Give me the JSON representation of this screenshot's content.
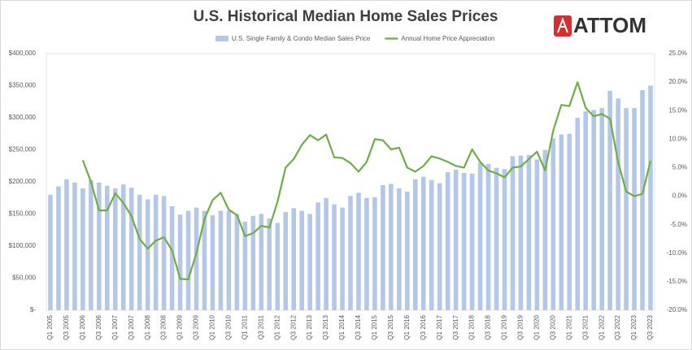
{
  "logo": "ATTOM",
  "chart_data": {
    "type": "bar",
    "title": "U.S. Historical Median Home Sales Prices",
    "categories": [
      "Q1 2005",
      null,
      "Q3 2005",
      null,
      "Q1 2006",
      null,
      "Q3 2006",
      null,
      "Q1 2007",
      null,
      "Q3 2007",
      null,
      "Q1 2008",
      null,
      "Q3 2008",
      null,
      "Q1 2009",
      null,
      "Q3 2009",
      null,
      "Q1 2010",
      null,
      "Q3 2010",
      null,
      "Q1 2011",
      null,
      "Q3 2011",
      null,
      "Q1 2012",
      null,
      "Q3 2012",
      null,
      "Q1 2013",
      null,
      "Q3 2013",
      null,
      "Q1 2014",
      null,
      "Q3 2014",
      null,
      "Q1 2015",
      null,
      "Q3 2015",
      null,
      "Q1 2016",
      null,
      "Q3 2016",
      null,
      "Q1 2017",
      null,
      "Q3 2017",
      null,
      "Q1 2018",
      null,
      "Q3 2018",
      null,
      "Q1 2019",
      null,
      "Q3 2019",
      null,
      "Q1 2020",
      null,
      "Q3 2020",
      null,
      "Q1 2021",
      null,
      "Q3 2021",
      null,
      "Q1 2022",
      null,
      "Q3 2022",
      null,
      "Q1 2023",
      null,
      "Q3 2023"
    ],
    "series": [
      {
        "name": "U.S. Single Family & Condo Median Sales Price",
        "type": "bar",
        "color": "#b4c7e7",
        "values": [
          180000,
          193000,
          204000,
          199000,
          190000,
          203000,
          199000,
          194000,
          190000,
          196000,
          191000,
          180000,
          173000,
          180000,
          178000,
          162000,
          149000,
          155000,
          160000,
          155000,
          148000,
          155000,
          155000,
          150000,
          138000,
          147000,
          150000,
          143000,
          136000,
          153000,
          159000,
          155000,
          150000,
          168000,
          175000,
          165000,
          160000,
          178000,
          183000,
          175000,
          176000,
          195000,
          197000,
          190000,
          185000,
          204000,
          208000,
          203000,
          198000,
          215000,
          219000,
          214000,
          213000,
          230000,
          228000,
          222000,
          220000,
          240000,
          241000,
          242000,
          235000,
          250000,
          268000,
          274000,
          275000,
          300000,
          310000,
          312000,
          315000,
          342000,
          330000,
          315000,
          315000,
          343000,
          350000
        ]
      },
      {
        "name": "Annual Home Price Appreciation",
        "type": "line",
        "axis": "y2",
        "color": "#70ad47",
        "values": [
          null,
          null,
          null,
          null,
          6.3,
          2.5,
          -2.5,
          -2.5,
          0.5,
          -1.2,
          -3.5,
          -7.5,
          -9.2,
          -7.8,
          -7.2,
          -9.5,
          -14.5,
          -14.6,
          -10,
          -4,
          -0.7,
          0.6,
          -2.4,
          -3.3,
          -7,
          -6.5,
          -5.2,
          -5.5,
          -1,
          5,
          6.5,
          9,
          10.7,
          9.8,
          10.8,
          6.8,
          6.7,
          5.8,
          4.3,
          6,
          10,
          9.8,
          8.2,
          8.5,
          5,
          4.3,
          5.3,
          7,
          6.6,
          6,
          5.3,
          5,
          8.2,
          6,
          4.5,
          4,
          3.3,
          5,
          5.2,
          6.5,
          7.8,
          4.5,
          11.5,
          16,
          15.8,
          20,
          15.5,
          14,
          14.4,
          13.6,
          6,
          0.8,
          0,
          0.4,
          6.2
        ]
      }
    ],
    "ylim": [
      0,
      400000
    ],
    "yticks": [
      {
        "value": 0,
        "label": "$-"
      },
      {
        "value": 50000,
        "label": "$50,000"
      },
      {
        "value": 100000,
        "label": "$100,000"
      },
      {
        "value": 150000,
        "label": "$150,000"
      },
      {
        "value": 200000,
        "label": "$200,000"
      },
      {
        "value": 250000,
        "label": "$250,000"
      },
      {
        "value": 300000,
        "label": "$300,000"
      },
      {
        "value": 350000,
        "label": "$350,000"
      },
      {
        "value": 400000,
        "label": "$400,000"
      }
    ],
    "y2lim": [
      -20,
      25
    ],
    "y2ticks": [
      {
        "value": -20,
        "label": "-20.0%"
      },
      {
        "value": -15,
        "label": "-15.0%"
      },
      {
        "value": -10,
        "label": "-10.0%"
      },
      {
        "value": -5,
        "label": "-5.0%"
      },
      {
        "value": 0,
        "label": "0.0%"
      },
      {
        "value": 5,
        "label": "5.0%"
      },
      {
        "value": 10,
        "label": "10.0%"
      },
      {
        "value": 15,
        "label": "15.0%"
      },
      {
        "value": 20,
        "label": "20.0%"
      },
      {
        "value": 25,
        "label": "25.0%"
      }
    ],
    "grid": false,
    "legend": "top"
  }
}
